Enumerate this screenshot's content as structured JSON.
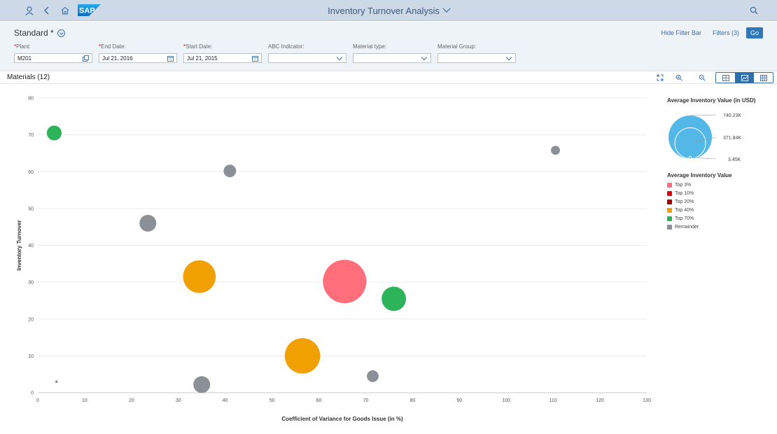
{
  "shell": {
    "title": "Inventory Turnover Analysis",
    "logo_text": "SAP",
    "icons": [
      "user-icon",
      "back-icon",
      "home-icon",
      "search-icon"
    ]
  },
  "filterbar": {
    "variant": "Standard *",
    "hide_filter_bar": "Hide Filter Bar",
    "filters": "Filters (3)",
    "go": "Go",
    "fields": [
      {
        "label": "Plant:",
        "required": true,
        "value": "M201",
        "type": "valuehelp"
      },
      {
        "label": "End Date:",
        "required": true,
        "value": "Jul 21, 2016",
        "type": "date"
      },
      {
        "label": "Start Date:",
        "required": true,
        "value": "Jul 21, 2015",
        "type": "date"
      },
      {
        "label": "ABC Indicator:",
        "required": false,
        "value": "",
        "type": "select"
      },
      {
        "label": "Material type:",
        "required": false,
        "value": "",
        "type": "select"
      },
      {
        "label": "Material Group:",
        "required": false,
        "value": "",
        "type": "select"
      }
    ]
  },
  "toolbar": {
    "title": "Materials (12)",
    "icons": [
      "fullscreen-icon",
      "zoom-in-icon",
      "zoom-out-icon"
    ],
    "view_buttons": [
      "chart-table-view-icon",
      "chart-view-icon",
      "table-view-icon"
    ]
  },
  "colors": {
    "top3": "#ff6f7b",
    "top10": "#e3000f",
    "top20": "#a30000",
    "top40": "#f0a000",
    "top70": "#2db45a",
    "remainder": "#8a9095",
    "size_bubble": "#53b8e8"
  },
  "chart_data": {
    "type": "scatter",
    "xlabel": "Coefficient of Variance for Goods Issue (in %)",
    "ylabel": "Inventory Turnover",
    "xlim": [
      0,
      130
    ],
    "ylim": [
      0,
      80
    ],
    "xticks": [
      0,
      10,
      20,
      30,
      40,
      50,
      60,
      70,
      80,
      90,
      100,
      110,
      120,
      130
    ],
    "yticks": [
      0,
      10,
      20,
      30,
      40,
      50,
      60,
      70,
      80
    ],
    "grid": "horizontal",
    "points": [
      {
        "x": 3.5,
        "y": 70.5,
        "size": 0.35,
        "category": "top70"
      },
      {
        "x": 41,
        "y": 60.2,
        "size": 0.25,
        "category": "remainder"
      },
      {
        "x": 110.5,
        "y": 65.8,
        "size": 0.13,
        "category": "remainder"
      },
      {
        "x": 23.5,
        "y": 46,
        "size": 0.45,
        "category": "remainder"
      },
      {
        "x": 34.5,
        "y": 31.5,
        "size": 1.7,
        "category": "top40"
      },
      {
        "x": 65.5,
        "y": 30.2,
        "size": 3.0,
        "category": "top3"
      },
      {
        "x": 76,
        "y": 25.5,
        "size": 0.95,
        "category": "top70"
      },
      {
        "x": 56.5,
        "y": 10,
        "size": 2.0,
        "category": "top40"
      },
      {
        "x": 71.5,
        "y": 4.5,
        "size": 0.22,
        "category": "remainder"
      },
      {
        "x": 35,
        "y": 2.2,
        "size": 0.45,
        "category": "remainder"
      },
      {
        "x": 4,
        "y": 3,
        "size": 0.01,
        "category": "remainder"
      }
    ],
    "size_legend": {
      "title": "Average Inventory Value (in USD)",
      "max": "740.23K",
      "mid": "371.84K",
      "min": "3.45K"
    },
    "color_legend": {
      "title": "Average Inventory Value",
      "items": [
        {
          "label": "Top 3%",
          "category": "top3"
        },
        {
          "label": "Top 10%",
          "category": "top10"
        },
        {
          "label": "Top 20%",
          "category": "top20"
        },
        {
          "label": "Top 40%",
          "category": "top40"
        },
        {
          "label": "Top 70%",
          "category": "top70"
        },
        {
          "label": "Remainder",
          "category": "remainder"
        }
      ]
    }
  }
}
